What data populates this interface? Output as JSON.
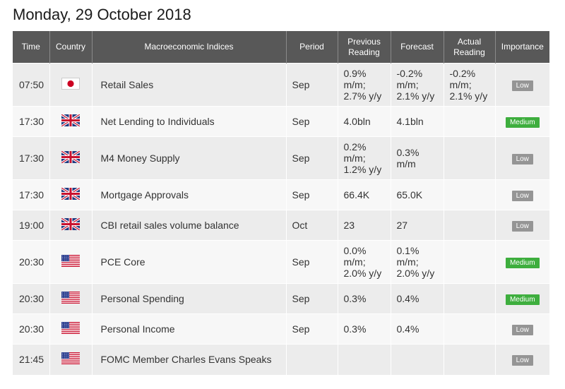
{
  "page": {
    "date_title": "Monday, 29 October 2018"
  },
  "table": {
    "headers": {
      "time": "Time",
      "country": "Country",
      "index": "Macroeconomic Indices",
      "period": "Period",
      "previous": [
        "Previous",
        "Reading"
      ],
      "forecast": "Forecast",
      "actual": [
        "Actual",
        "Reading"
      ],
      "importance": "Importance"
    },
    "rows": [
      {
        "time": "07:50",
        "flag": "japan-flag-icon",
        "index": "Retail Sales",
        "period": "Sep",
        "previous": [
          "0.9%",
          "m/m;",
          "2.7% y/y"
        ],
        "forecast": [
          "-0.2%",
          "m/m;",
          "2.1% y/y"
        ],
        "actual": [
          "-0.2%",
          "m/m;",
          "2.1% y/y"
        ],
        "importance": "Low"
      },
      {
        "time": "17:30",
        "flag": "uk-flag-icon",
        "index": "Net Lending to Individuals",
        "period": "Sep",
        "previous": [
          "4.0bln"
        ],
        "forecast": [
          "4.1bln"
        ],
        "actual": [],
        "importance": "Medium"
      },
      {
        "time": "17:30",
        "flag": "uk-flag-icon",
        "index": "M4 Money Supply",
        "period": "Sep",
        "previous": [
          "0.2%",
          "m/m;",
          "1.2% y/y"
        ],
        "forecast": [
          "0.3%",
          "m/m"
        ],
        "actual": [],
        "importance": "Low"
      },
      {
        "time": "17:30",
        "flag": "uk-flag-icon",
        "index": "Mortgage Approvals",
        "period": "Sep",
        "previous": [
          "66.4K"
        ],
        "forecast": [
          "65.0K"
        ],
        "actual": [],
        "importance": "Low"
      },
      {
        "time": "19:00",
        "flag": "uk-flag-icon",
        "index": "CBI retail sales volume balance",
        "period": "Oct",
        "previous": [
          "23"
        ],
        "forecast": [
          "27"
        ],
        "actual": [],
        "importance": "Low"
      },
      {
        "time": "20:30",
        "flag": "us-flag-icon",
        "index": "PCE Core",
        "period": "Sep",
        "previous": [
          "0.0%",
          "m/m;",
          "2.0% y/y"
        ],
        "forecast": [
          "0.1%",
          "m/m;",
          "2.0% y/y"
        ],
        "actual": [],
        "importance": "Medium"
      },
      {
        "time": "20:30",
        "flag": "us-flag-icon",
        "index": "Personal Spending",
        "period": "Sep",
        "previous": [
          "0.3%"
        ],
        "forecast": [
          "0.4%"
        ],
        "actual": [],
        "importance": "Medium"
      },
      {
        "time": "20:30",
        "flag": "us-flag-icon",
        "index": "Personal Income",
        "period": "Sep",
        "previous": [
          "0.3%"
        ],
        "forecast": [
          "0.4%"
        ],
        "actual": [],
        "importance": "Low"
      },
      {
        "time": "21:45",
        "flag": "us-flag-icon",
        "index": "FOMC Member Charles Evans Speaks",
        "period": "",
        "previous": [],
        "forecast": [],
        "actual": [],
        "importance": "Low"
      }
    ]
  },
  "colors": {
    "header_bg": "#585858",
    "row_odd": "#ececec",
    "row_even": "#f7f7f7",
    "badge_low": "#959595",
    "badge_medium": "#3eae3e"
  }
}
